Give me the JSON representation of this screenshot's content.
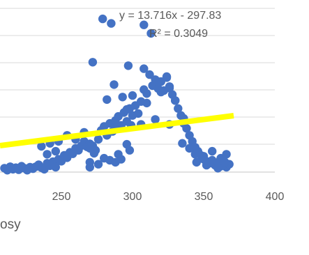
{
  "chart_data": {
    "type": "scatter",
    "xlabel": "osy",
    "ylabel": "",
    "xlim": [
      210,
      400
    ],
    "ylim": [
      0,
      350
    ],
    "xticks": [
      "250",
      "300",
      "350",
      "400"
    ],
    "grid": "horizontal",
    "colors": {
      "points": "#4472C4",
      "trendline": "#FFFF00",
      "grid": "#D9D9D9",
      "text": "#595959"
    },
    "trendline": {
      "slope": 13.716,
      "intercept": -297.83,
      "x_range": [
        210,
        370
      ],
      "equation": "y = 13.716x - 297.83",
      "r_squared": "R² = 0.3049"
    },
    "series": [
      {
        "points": [
          [
            210,
            12
          ],
          [
            212,
            8
          ],
          [
            214,
            15
          ],
          [
            216,
            10
          ],
          [
            218,
            13
          ],
          [
            220,
            9
          ],
          [
            222,
            16
          ],
          [
            224,
            12
          ],
          [
            226,
            8
          ],
          [
            228,
            14
          ],
          [
            230,
            11
          ],
          [
            232,
            15
          ],
          [
            234,
            19
          ],
          [
            236,
            13
          ],
          [
            238,
            10
          ],
          [
            240,
            22
          ],
          [
            242,
            17
          ],
          [
            244,
            25
          ],
          [
            246,
            14
          ],
          [
            248,
            30
          ],
          [
            250,
            26
          ],
          [
            252,
            38
          ],
          [
            254,
            33
          ],
          [
            256,
            44
          ],
          [
            258,
            41
          ],
          [
            260,
            52
          ],
          [
            262,
            48
          ],
          [
            264,
            57
          ],
          [
            266,
            66
          ],
          [
            268,
            55
          ],
          [
            270,
            61
          ],
          [
            272,
            57
          ],
          [
            274,
            48
          ],
          [
            276,
            70
          ],
          [
            278,
            88
          ],
          [
            280,
            96
          ],
          [
            282,
            78
          ],
          [
            284,
            102
          ],
          [
            286,
            86
          ],
          [
            288,
            92
          ],
          [
            290,
            116
          ],
          [
            292,
            98
          ],
          [
            294,
            124
          ],
          [
            296,
            106
          ],
          [
            298,
            132
          ],
          [
            300,
            118
          ],
          [
            302,
            138
          ],
          [
            304,
            122
          ],
          [
            306,
            146
          ],
          [
            308,
            170
          ],
          [
            310,
            162
          ],
          [
            312,
            200
          ],
          [
            314,
            178
          ],
          [
            316,
            190
          ],
          [
            318,
            172
          ],
          [
            320,
            186
          ],
          [
            322,
            168
          ],
          [
            324,
            194
          ],
          [
            326,
            176
          ],
          [
            328,
            160
          ],
          [
            330,
            148
          ],
          [
            332,
            132
          ],
          [
            334,
            118
          ],
          [
            336,
            102
          ],
          [
            338,
            92
          ],
          [
            340,
            78
          ],
          [
            342,
            66
          ],
          [
            344,
            54
          ],
          [
            346,
            46
          ],
          [
            348,
            38
          ],
          [
            350,
            30
          ],
          [
            352,
            26
          ],
          [
            354,
            22
          ],
          [
            356,
            28
          ],
          [
            358,
            18
          ],
          [
            360,
            24
          ],
          [
            362,
            16
          ],
          [
            364,
            22
          ],
          [
            366,
            14
          ],
          [
            368,
            20
          ],
          [
            279,
            312
          ],
          [
            285,
            303
          ],
          [
            272,
            225
          ],
          [
            308,
            300
          ],
          [
            313,
            283
          ],
          [
            297,
            218
          ],
          [
            308,
            212
          ],
          [
            318,
            186
          ],
          [
            324,
            196
          ],
          [
            326,
            173
          ],
          [
            282,
            150
          ],
          [
            287,
            180
          ],
          [
            293,
            155
          ],
          [
            300,
            158
          ],
          [
            310,
            143
          ],
          [
            320,
            165
          ],
          [
            330,
            148
          ],
          [
            296,
            130
          ],
          [
            316,
            110
          ],
          [
            326,
            100
          ],
          [
            336,
            112
          ],
          [
            288,
            108
          ],
          [
            306,
            100
          ],
          [
            273,
            42
          ],
          [
            299,
            98
          ],
          [
            260,
            70
          ],
          [
            254,
            78
          ],
          [
            248,
            66
          ],
          [
            242,
            62
          ],
          [
            236,
            56
          ],
          [
            266,
            84
          ],
          [
            270,
            52
          ],
          [
            246,
            46
          ],
          [
            240,
            40
          ],
          [
            296,
            60
          ],
          [
            280,
            32
          ],
          [
            284,
            28
          ],
          [
            270,
            24
          ],
          [
            290,
            40
          ],
          [
            298,
            48
          ],
          [
            344,
            40
          ],
          [
            350,
            36
          ],
          [
            356,
            46
          ],
          [
            362,
            32
          ],
          [
            366,
            40
          ],
          [
            345,
            24
          ],
          [
            360,
            12
          ],
          [
            352,
            18
          ],
          [
            340,
            52
          ],
          [
            335,
            62
          ],
          [
            365,
            24
          ],
          [
            270,
            14
          ],
          [
            276,
            20
          ],
          [
            288,
            24
          ],
          [
            292,
            30
          ]
        ]
      }
    ]
  }
}
